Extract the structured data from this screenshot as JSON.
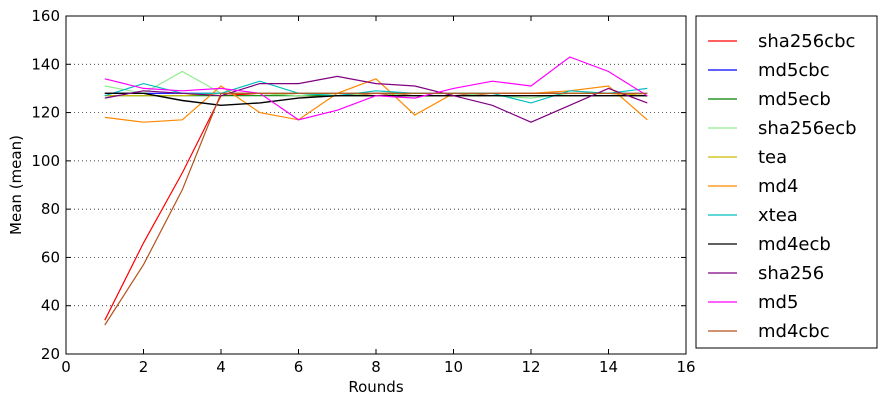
{
  "chart_data": {
    "type": "line",
    "title": "",
    "xlabel": "Rounds",
    "ylabel": "Mean (mean)",
    "xlim": [
      0,
      16
    ],
    "ylim": [
      20,
      160
    ],
    "xticks": [
      0,
      2,
      4,
      6,
      8,
      10,
      12,
      14,
      16
    ],
    "yticks": [
      20,
      40,
      60,
      80,
      100,
      120,
      140,
      160
    ],
    "grid": "horizontal-dotted",
    "legend_position": "outside-right",
    "x": [
      1,
      2,
      3,
      4,
      5,
      6,
      7,
      8,
      9,
      10,
      11,
      12,
      13,
      14,
      15
    ],
    "series": [
      {
        "name": "sha256cbc",
        "color": "#ff0000",
        "values": [
          34,
          66,
          95,
          127,
          128,
          127,
          127,
          128,
          127,
          127,
          128,
          128,
          128,
          128,
          127
        ]
      },
      {
        "name": "md5cbc",
        "color": "#0000ff",
        "values": [
          128,
          128,
          128,
          128,
          128,
          128,
          128,
          128,
          128,
          128,
          128,
          128,
          128,
          128,
          128
        ]
      },
      {
        "name": "md5ecb",
        "color": "#008000",
        "values": [
          127,
          127,
          127,
          127,
          127,
          127,
          127,
          127,
          127,
          127,
          127,
          127,
          127,
          127,
          127
        ]
      },
      {
        "name": "sha256ecb",
        "color": "#90ee90",
        "values": [
          131,
          128,
          137,
          128,
          128,
          127,
          128,
          127,
          128,
          128,
          127,
          126,
          128,
          128,
          128
        ]
      },
      {
        "name": "tea",
        "color": "#ccbb00",
        "values": [
          127,
          127,
          127,
          128,
          128,
          128,
          128,
          128,
          128,
          128,
          128,
          128,
          128,
          128,
          127
        ]
      },
      {
        "name": "md4",
        "color": "#ff8800",
        "values": [
          118,
          116,
          117,
          131,
          120,
          117,
          128,
          134,
          119,
          128,
          128,
          128,
          129,
          131,
          117
        ]
      },
      {
        "name": "xtea",
        "color": "#00bfbf",
        "values": [
          127,
          132,
          128,
          128,
          133,
          128,
          127,
          129,
          128,
          128,
          128,
          124,
          129,
          128,
          130
        ]
      },
      {
        "name": "md4ecb",
        "color": "#000000",
        "values": [
          128,
          128,
          125,
          123,
          124,
          126,
          127,
          127,
          127,
          127,
          127,
          127,
          127,
          127,
          127
        ]
      },
      {
        "name": "sha256",
        "color": "#800080",
        "values": [
          126,
          129,
          128,
          127,
          132,
          132,
          135,
          132,
          131,
          127,
          123,
          116,
          123,
          130,
          124
        ]
      },
      {
        "name": "md5",
        "color": "#ff00ff",
        "values": [
          134,
          130,
          129,
          130,
          128,
          117,
          121,
          127,
          126,
          130,
          133,
          131,
          143,
          137,
          127
        ]
      },
      {
        "name": "md4cbc",
        "color": "#b5511b",
        "values": [
          32,
          57,
          88,
          128,
          128,
          128,
          128,
          128,
          128,
          128,
          128,
          128,
          128,
          128,
          128
        ]
      }
    ]
  }
}
